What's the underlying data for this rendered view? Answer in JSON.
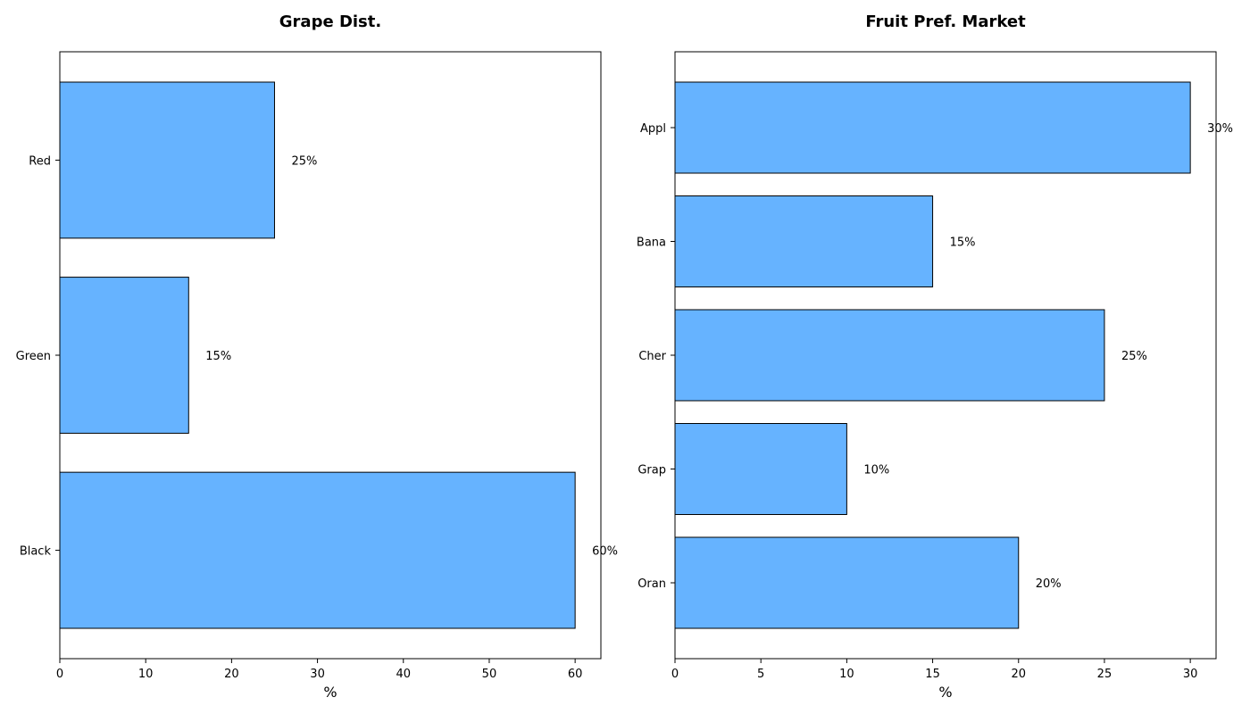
{
  "chart_data": [
    {
      "type": "bar",
      "orientation": "horizontal",
      "title": "Grape Dist.",
      "xlabel": "%",
      "ylabel": "",
      "categories": [
        "Red",
        "Green",
        "Black"
      ],
      "values": [
        25,
        15,
        60
      ],
      "data_labels": [
        "25%",
        "15%",
        "60%"
      ],
      "xlim": [
        0,
        63
      ],
      "xticks": [
        0,
        10,
        20,
        30,
        40,
        50,
        60
      ],
      "grid": false,
      "bar_color": "#66b3ff",
      "edge_color": "#000000"
    },
    {
      "type": "bar",
      "orientation": "horizontal",
      "title": "Fruit Pref. Market",
      "xlabel": "%",
      "ylabel": "",
      "categories": [
        "Appl",
        "Bana",
        "Cher",
        "Grap",
        "Oran"
      ],
      "values": [
        30,
        15,
        25,
        10,
        20
      ],
      "data_labels": [
        "30%",
        "15%",
        "25%",
        "10%",
        "20%"
      ],
      "xlim": [
        0,
        31.5
      ],
      "xticks": [
        0,
        5,
        10,
        15,
        20,
        25,
        30
      ],
      "grid": false,
      "bar_color": "#66b3ff",
      "edge_color": "#000000"
    }
  ]
}
